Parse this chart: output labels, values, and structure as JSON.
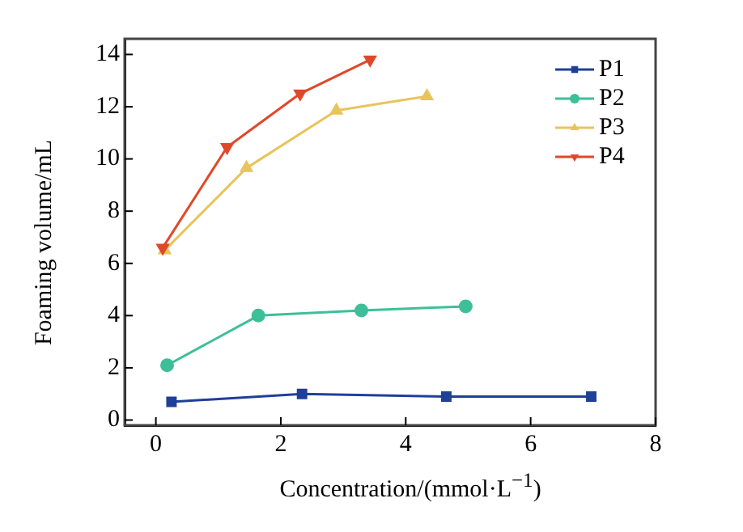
{
  "chart_data": {
    "type": "line",
    "xlabel": "Concentration/(mmol·L$^{−1}$)",
    "ylabel": "Foaming volume/mL",
    "xlim": [
      -0.5,
      8
    ],
    "xticks": [
      0,
      2,
      4,
      6,
      8
    ],
    "ylim": [
      -0.2,
      14.6
    ],
    "yticks": [
      0,
      2,
      4,
      6,
      8,
      10,
      12,
      14
    ],
    "grid": false,
    "legend": "top right",
    "series": [
      {
        "name": "P1",
        "color": "#1f3f99",
        "marker": "square",
        "x": [
          0.25,
          2.34,
          4.65,
          6.97
        ],
        "values": [
          0.7,
          1.0,
          0.9,
          0.9
        ]
      },
      {
        "name": "P2",
        "color": "#3dbf99",
        "marker": "circle",
        "x": [
          0.18,
          1.64,
          3.29,
          4.96
        ],
        "values": [
          2.1,
          4.0,
          4.2,
          4.35
        ]
      },
      {
        "name": "P3",
        "color": "#e8c45a",
        "marker": "triangle",
        "x": [
          0.14,
          1.45,
          2.89,
          4.34
        ],
        "values": [
          6.5,
          9.65,
          11.85,
          12.4
        ]
      },
      {
        "name": "P4",
        "color": "#e0482a",
        "marker": "triangle-down",
        "x": [
          0.11,
          1.14,
          2.31,
          3.43
        ],
        "values": [
          6.6,
          10.45,
          12.5,
          13.8
        ]
      }
    ]
  }
}
